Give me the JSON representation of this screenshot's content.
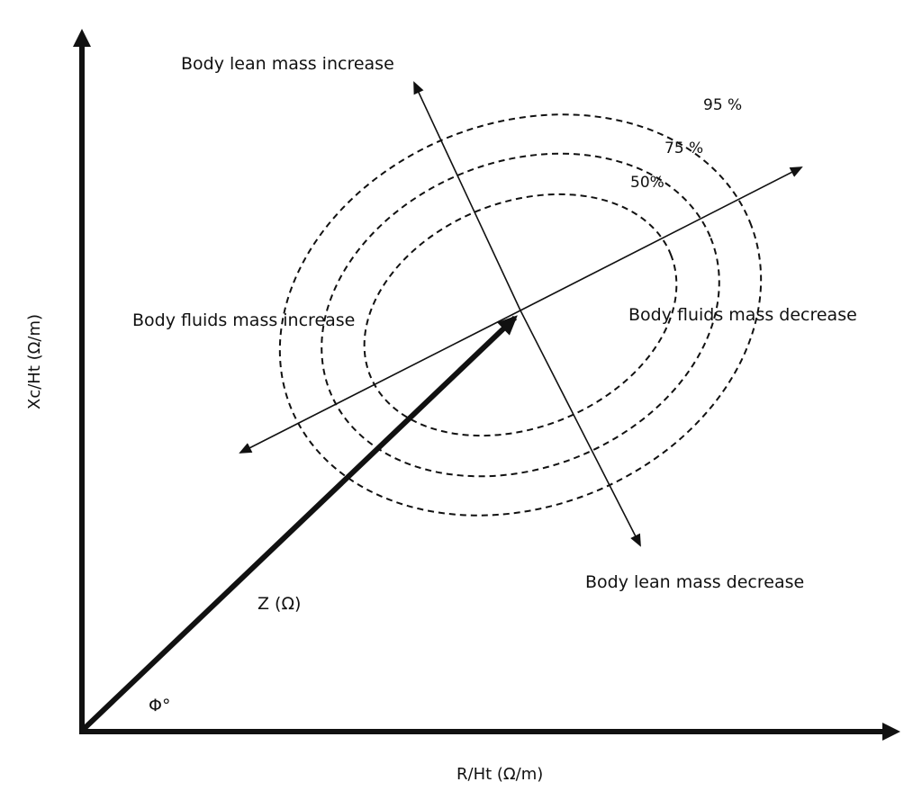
{
  "diagram": {
    "x_axis_label": "R/Ht (Ω/m)",
    "y_axis_label": "Xc/Ht (Ω/m)",
    "vector_label": "Z (Ω)",
    "angle_label": "Φ°",
    "lean_increase": "Body lean mass increase",
    "lean_decrease": "Body lean mass decrease",
    "fluids_increase": "Body fluids mass increase",
    "fluids_decrease": "Body fluids mass decrease",
    "ellipses": [
      {
        "label": "95 %"
      },
      {
        "label": "75 %"
      },
      {
        "label": "50%"
      }
    ],
    "color": "#111111"
  }
}
